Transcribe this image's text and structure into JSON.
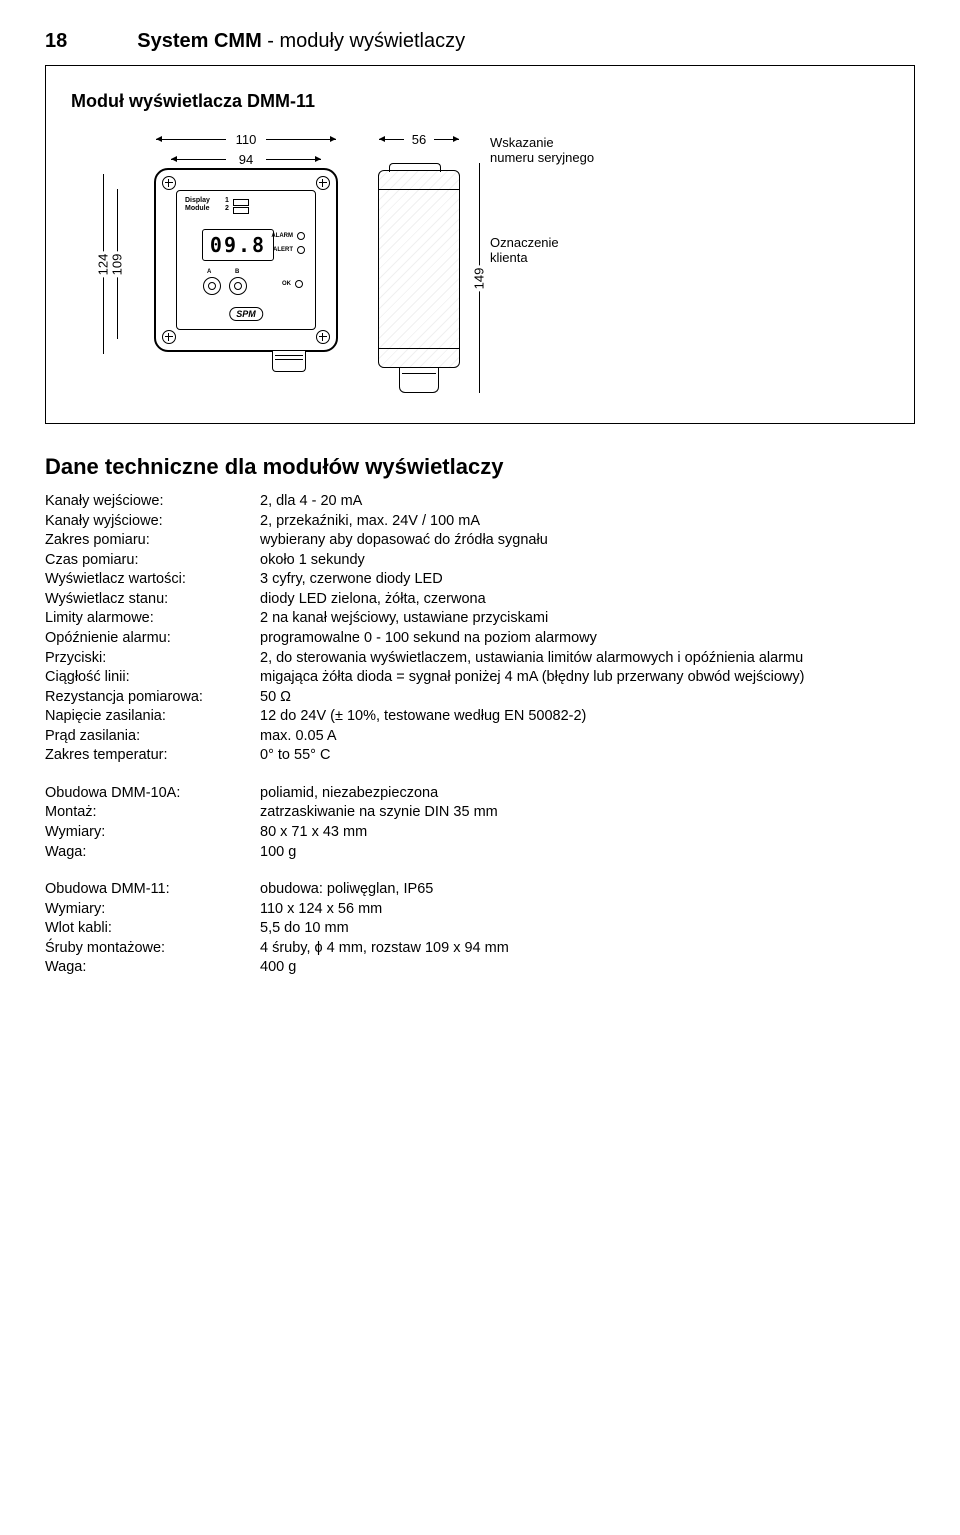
{
  "header": {
    "page_number": "18",
    "title_bold": "System CMM",
    "title_rest": "  -  moduły wyświetlaczy"
  },
  "diagram": {
    "title": "Moduł wyświetlacza DMM-11",
    "dims": {
      "width_outer": "110",
      "width_inner": "94",
      "height_outer": "124",
      "height_inner": "109",
      "depth": "56",
      "height_total": "149"
    },
    "panel": {
      "display_label": "Display",
      "module_label": "Module",
      "ch1": "1",
      "ch2": "2",
      "digits": "09.8",
      "alarm": "ALARM",
      "alert": "ALERT",
      "a": "A",
      "b": "B",
      "ok": "OK",
      "logo": "SPM"
    },
    "annotations": {
      "serial": "Wskazanie\nnumeru seryjnego",
      "client": "Oznaczenie\nklienta"
    }
  },
  "section_title": "Dane techniczne dla modułów wyświetlaczy",
  "specs": [
    {
      "label": "Kanały wejściowe:",
      "value": "2, dla 4 - 20 mA"
    },
    {
      "label": "Kanały wyjściowe:",
      "value": "2, przekaźniki, max. 24V / 100 mA"
    },
    {
      "label": "Zakres pomiaru:",
      "value": "wybierany aby dopasować do źródła sygnału"
    },
    {
      "label": "Czas pomiaru:",
      "value": "około 1 sekundy"
    },
    {
      "label": "Wyświetlacz wartości:",
      "value": "3 cyfry, czerwone diody LED"
    },
    {
      "label": "Wyświetlacz stanu:",
      "value": "diody LED zielona, żółta, czerwona"
    },
    {
      "label": "Limity alarmowe:",
      "value": "2 na kanał wejściowy, ustawiane przyciskami"
    },
    {
      "label": "Opóźnienie alarmu:",
      "value": "programowalne 0 - 100 sekund na poziom alarmowy"
    },
    {
      "label": "Przyciski:",
      "value": "2, do sterowania wyświetlaczem, ustawiania limitów alarmowych i opóźnienia alarmu"
    },
    {
      "label": "Ciągłość linii:",
      "value": "migająca żółta dioda = sygnał poniżej 4 mA (błędny lub przerwany obwód wejściowy)"
    },
    {
      "label": "Rezystancja pomiarowa:",
      "value": "50 Ω"
    },
    {
      "label": "Napięcie zasilania:",
      "value": "12 do 24V  (± 10%, testowane według EN 50082-2)"
    },
    {
      "label": "Prąd zasilania:",
      "value": "max. 0.05 A"
    },
    {
      "label": "Zakres temperatur:",
      "value": "0° to 55° C"
    }
  ],
  "specs2": [
    {
      "label": "Obudowa DMM-10A:",
      "value": "poliamid, niezabezpieczona"
    },
    {
      "label": "Montaż:",
      "value": "zatrzaskiwanie na szynie DIN 35 mm"
    },
    {
      "label": "Wymiary:",
      "value": "80 x 71 x 43 mm"
    },
    {
      "label": "Waga:",
      "value": "100 g"
    }
  ],
  "specs3": [
    {
      "label": "Obudowa DMM-11:",
      "value": "obudowa:  poliwęglan, IP65"
    },
    {
      "label": "Wymiary:",
      "value": "110 x 124 x 56 mm"
    },
    {
      "label": "Wlot kabli:",
      "value": "5,5 do 10 mm"
    },
    {
      "label": "Śruby montażowe:",
      "value": "4 śruby, ϕ 4 mm, rozstaw 109 x 94 mm"
    },
    {
      "label": "Waga:",
      "value": "400 g"
    }
  ]
}
